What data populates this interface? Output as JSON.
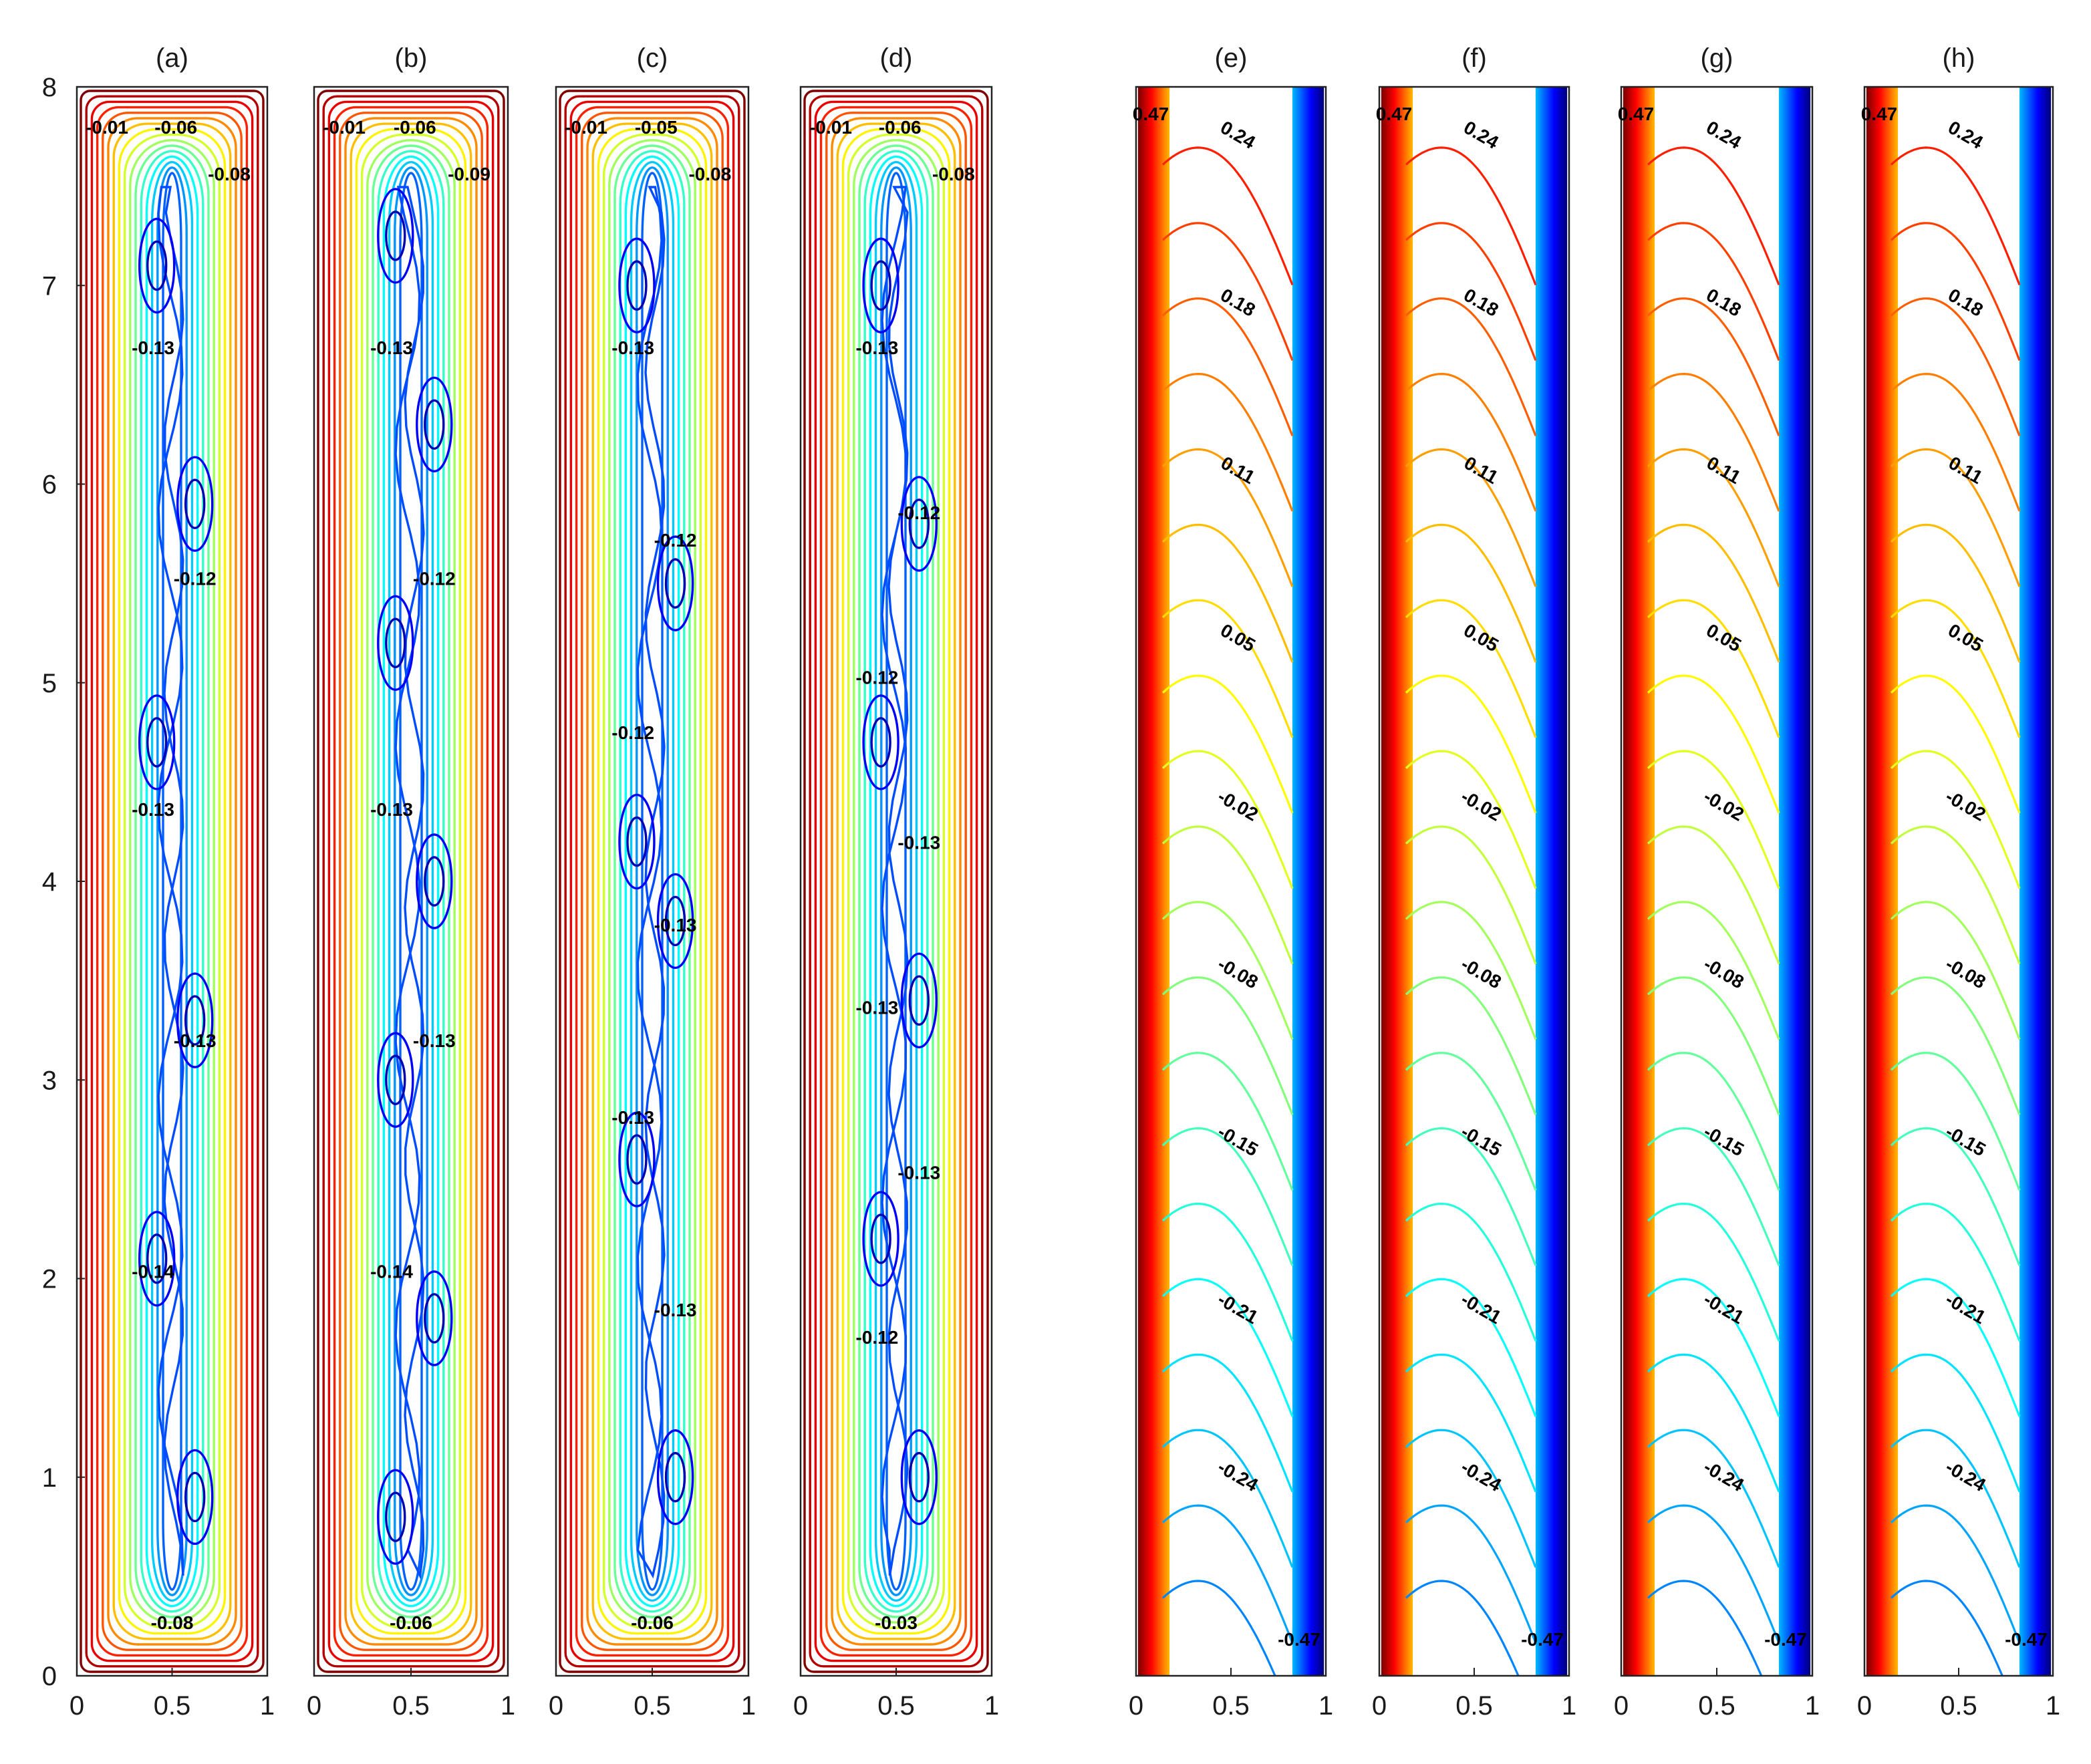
{
  "chart_data": [
    {
      "type": "contour",
      "panel": "(a)",
      "kind": "streamfunction",
      "xlim": [
        0,
        1
      ],
      "ylim": [
        0,
        8
      ],
      "xticks": [
        "0",
        "0.5",
        "1"
      ],
      "yticks": [
        "0",
        "1",
        "2",
        "3",
        "4",
        "5",
        "6",
        "7",
        "8"
      ],
      "contour_labels": [
        "-0.01",
        "-0.06",
        "-0.08",
        "-0.13",
        "-0.12",
        "-0.13",
        "-0.13",
        "-0.14",
        "-0.08"
      ],
      "vortex_cores_y": [
        7.1,
        5.9,
        4.7,
        3.3,
        2.1,
        0.9
      ]
    },
    {
      "type": "contour",
      "panel": "(b)",
      "kind": "streamfunction",
      "xlim": [
        0,
        1
      ],
      "ylim": [
        0,
        8
      ],
      "xticks": [
        "0",
        "0.5",
        "1"
      ],
      "yticks": [],
      "contour_labels": [
        "-0.01",
        "-0.06",
        "-0.09",
        "-0.13",
        "-0.12",
        "-0.13",
        "-0.13",
        "-0.14",
        "-0.06"
      ],
      "vortex_cores_y": [
        7.25,
        6.3,
        5.2,
        4.0,
        3.0,
        1.8,
        0.8
      ]
    },
    {
      "type": "contour",
      "panel": "(c)",
      "kind": "streamfunction",
      "xlim": [
        0,
        1
      ],
      "ylim": [
        0,
        8
      ],
      "xticks": [
        "0",
        "0.5",
        "1"
      ],
      "yticks": [],
      "contour_labels": [
        "-0.01",
        "-0.05",
        "-0.08",
        "-0.13",
        "-0.12",
        "-0.12",
        "-0.13",
        "-0.13",
        "-0.13",
        "-0.06"
      ],
      "vortex_cores_y": [
        7.0,
        5.5,
        4.2,
        3.8,
        2.6,
        1.0
      ]
    },
    {
      "type": "contour",
      "panel": "(d)",
      "kind": "streamfunction",
      "xlim": [
        0,
        1
      ],
      "ylim": [
        0,
        8
      ],
      "xticks": [
        "0",
        "0.5",
        "1"
      ],
      "yticks": [],
      "contour_labels": [
        "-0.01",
        "-0.06",
        "-0.08",
        "-0.13",
        "-0.12",
        "-0.12",
        "-0.13",
        "-0.13",
        "-0.13",
        "-0.12",
        "-0.03"
      ],
      "vortex_cores_y": [
        7.0,
        5.8,
        4.7,
        3.4,
        2.2,
        1.0
      ]
    },
    {
      "type": "contour",
      "panel": "(e)",
      "kind": "temperature",
      "xlim": [
        0,
        1
      ],
      "ylim": [
        0,
        8
      ],
      "xticks": [
        "0",
        "0.5",
        "1"
      ],
      "yticks": [],
      "contour_labels": [
        "0.47",
        "0.24",
        "0.18",
        "0.11",
        "0.05",
        "-0.02",
        "-0.08",
        "-0.15",
        "-0.21",
        "-0.24",
        "-0.47"
      ]
    },
    {
      "type": "contour",
      "panel": "(f)",
      "kind": "temperature",
      "xlim": [
        0,
        1
      ],
      "ylim": [
        0,
        8
      ],
      "xticks": [
        "0",
        "0.5",
        "1"
      ],
      "yticks": [],
      "contour_labels": [
        "0.47",
        "0.24",
        "0.18",
        "0.11",
        "0.05",
        "-0.02",
        "-0.08",
        "-0.15",
        "-0.21",
        "-0.24",
        "-0.47"
      ]
    },
    {
      "type": "contour",
      "panel": "(g)",
      "kind": "temperature",
      "xlim": [
        0,
        1
      ],
      "ylim": [
        0,
        8
      ],
      "xticks": [
        "0",
        "0.5",
        "1"
      ],
      "yticks": [],
      "contour_labels": [
        "0.47",
        "0.24",
        "0.18",
        "0.11",
        "0.05",
        "-0.02",
        "-0.08",
        "-0.15",
        "-0.21",
        "-0.24",
        "-0.47"
      ]
    },
    {
      "type": "contour",
      "panel": "(h)",
      "kind": "temperature",
      "xlim": [
        0,
        1
      ],
      "ylim": [
        0,
        8
      ],
      "xticks": [
        "0",
        "0.5",
        "1"
      ],
      "yticks": [],
      "contour_labels": [
        "0.47",
        "0.24",
        "0.18",
        "0.11",
        "0.05",
        "-0.02",
        "-0.08",
        "-0.15",
        "-0.21",
        "-0.24",
        "-0.47"
      ]
    }
  ]
}
